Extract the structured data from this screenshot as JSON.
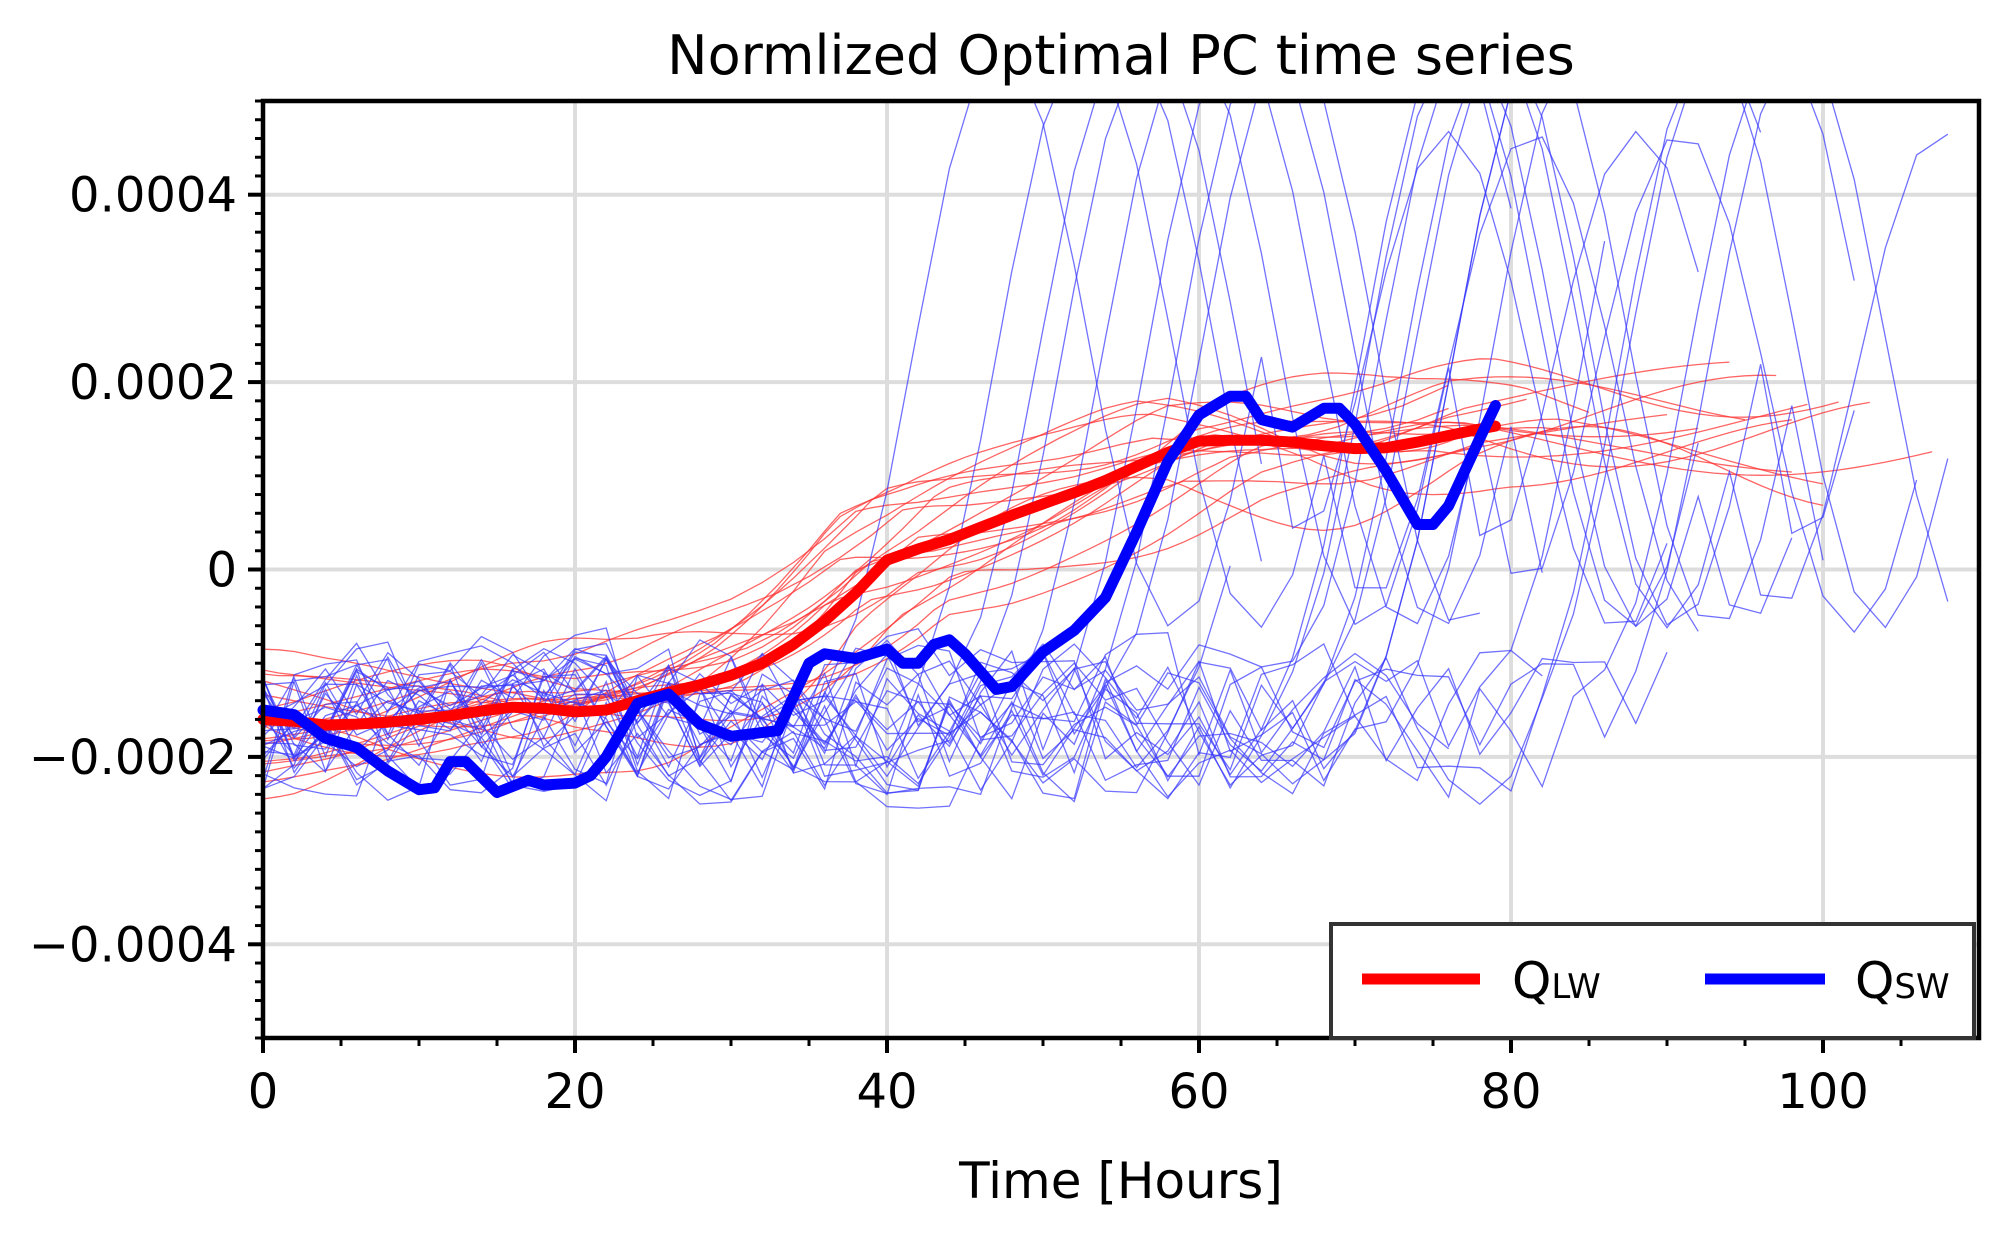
{
  "chart_data": {
    "type": "line",
    "title": "Normlized Optimal PC time series",
    "xlabel": "Time [Hours]",
    "ylabel": "",
    "xlim": [
      0,
      110
    ],
    "ylim": [
      -0.0005,
      0.0005
    ],
    "xticks": [
      0,
      20,
      40,
      60,
      80,
      100
    ],
    "xtick_labels": [
      "0",
      "20",
      "40",
      "60",
      "80",
      "100"
    ],
    "yticks": [
      -0.0004,
      -0.0002,
      0,
      0.0002,
      0.0004
    ],
    "ytick_labels": [
      "−0.0004",
      "−0.0002",
      "0",
      "0.0002",
      "0.0004"
    ],
    "grid": true,
    "legend_position": "bottom-right",
    "legend_columns": 2,
    "colors": {
      "lw": "#ff0000",
      "sw": "#0000ff",
      "lw_thin": "#ff3030",
      "sw_thin": "#3535ff"
    },
    "series": [
      {
        "name": "Q_LW",
        "legend_main": "Q",
        "legend_sub": "LW",
        "color": "#ff0000",
        "x": [
          0,
          2,
          4,
          6,
          8,
          10,
          12,
          14,
          16,
          18,
          20,
          22,
          24,
          26,
          28,
          30,
          32,
          34,
          36,
          38,
          40,
          42,
          44,
          46,
          48,
          50,
          52,
          54,
          56,
          58,
          60,
          62,
          64,
          66,
          68,
          70,
          72,
          74,
          76,
          78,
          79
        ],
        "y": [
          -0.00016,
          -0.000162,
          -0.000166,
          -0.000165,
          -0.000163,
          -0.00016,
          -0.000156,
          -0.000151,
          -0.000147,
          -0.000148,
          -0.000152,
          -0.00015,
          -0.00014,
          -0.000131,
          -0.000123,
          -0.000113,
          -0.0001,
          -8e-05,
          -5.5e-05,
          -2.5e-05,
          1e-05,
          2.2e-05,
          3.2e-05,
          4.5e-05,
          5.8e-05,
          7e-05,
          8.2e-05,
          9.5e-05,
          0.00011,
          0.000125,
          0.000137,
          0.000138,
          0.000138,
          0.000136,
          0.000132,
          0.000129,
          0.00013,
          0.000136,
          0.000143,
          0.00015,
          0.000153
        ]
      },
      {
        "name": "Q_SW",
        "legend_main": "Q",
        "legend_sub": "SW",
        "color": "#0000ff",
        "x": [
          0,
          2,
          4,
          6,
          8,
          10,
          11,
          12,
          13,
          15,
          17,
          18,
          20,
          21,
          22,
          24,
          26,
          28,
          30,
          33,
          35,
          36,
          38,
          40,
          41,
          42,
          43,
          44,
          45,
          47,
          48,
          50,
          52,
          54,
          56,
          58,
          60,
          61,
          62,
          63,
          64,
          66,
          68,
          69,
          70,
          72,
          74,
          75,
          76,
          78,
          79
        ],
        "y": [
          -0.00015,
          -0.000155,
          -0.00018,
          -0.00019,
          -0.000215,
          -0.000235,
          -0.000233,
          -0.000205,
          -0.000205,
          -0.000238,
          -0.000225,
          -0.00023,
          -0.000228,
          -0.00022,
          -0.0002,
          -0.000143,
          -0.000133,
          -0.000165,
          -0.000178,
          -0.000172,
          -0.0001,
          -9e-05,
          -9.5e-05,
          -8.5e-05,
          -0.0001,
          -0.0001,
          -8e-05,
          -7.5e-05,
          -9e-05,
          -0.000128,
          -0.000125,
          -8.8e-05,
          -6.5e-05,
          -3e-05,
          4e-05,
          0.000115,
          0.000165,
          0.000175,
          0.000185,
          0.000185,
          0.00016,
          0.000152,
          0.000172,
          0.000172,
          0.000155,
          0.000105,
          4.8e-05,
          4.8e-05,
          6.8e-05,
          0.00014,
          0.000175
        ]
      }
    ]
  }
}
